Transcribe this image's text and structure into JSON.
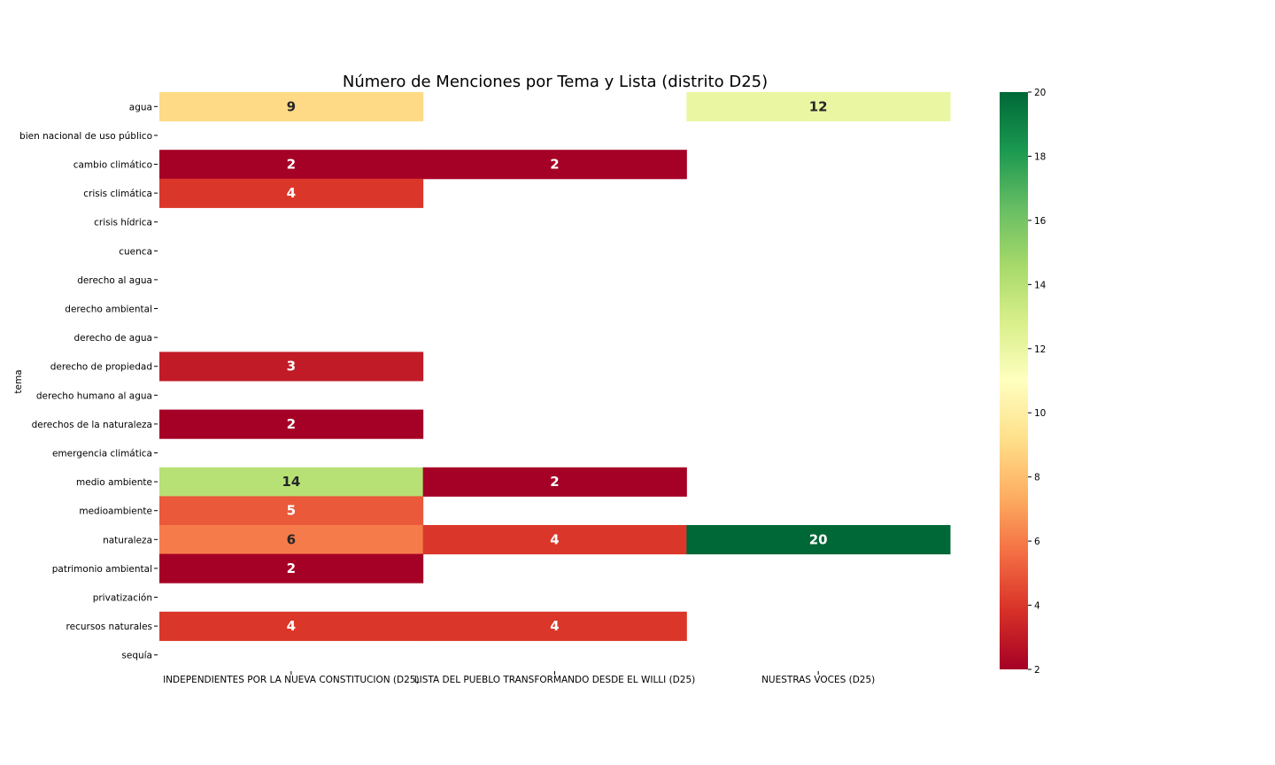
{
  "chart_data": {
    "type": "heatmap",
    "title": "Número de Menciones por Tema y Lista (distrito D25)",
    "ylabel": "tema",
    "xlabel": "",
    "columns": [
      "INDEPENDIENTES POR LA NUEVA CONSTITUCION (D25)",
      "LISTA DEL PUEBLO TRANSFORMANDO DESDE EL WILLI (D25)",
      "NUESTRAS VOCES (D25)"
    ],
    "rows": [
      "agua",
      "bien nacional de uso público",
      "cambio climático",
      "crisis climática",
      "crisis hídrica",
      "cuenca",
      "derecho al agua",
      "derecho ambiental",
      "derecho de agua",
      "derecho de propiedad",
      "derecho humano al agua",
      "derechos de la naturaleza",
      "emergencia climática",
      "medio ambiente",
      "medioambiente",
      "naturaleza",
      "patrimonio ambiental",
      "privatización",
      "recursos naturales",
      "sequía"
    ],
    "values": [
      [
        9,
        null,
        12
      ],
      [
        null,
        null,
        null
      ],
      [
        2,
        2,
        null
      ],
      [
        4,
        null,
        null
      ],
      [
        null,
        null,
        null
      ],
      [
        null,
        null,
        null
      ],
      [
        null,
        null,
        null
      ],
      [
        null,
        null,
        null
      ],
      [
        null,
        null,
        null
      ],
      [
        3,
        null,
        null
      ],
      [
        null,
        null,
        null
      ],
      [
        2,
        null,
        null
      ],
      [
        null,
        null,
        null
      ],
      [
        14,
        2,
        null
      ],
      [
        5,
        null,
        null
      ],
      [
        6,
        4,
        20
      ],
      [
        2,
        null,
        null
      ],
      [
        null,
        null,
        null
      ],
      [
        4,
        4,
        null
      ],
      [
        null,
        null,
        null
      ]
    ],
    "colormap": "RdYlGn",
    "vmin": 2,
    "vmax": 20,
    "colorbar_ticks": [
      2,
      4,
      6,
      8,
      10,
      12,
      14,
      16,
      18,
      20
    ],
    "annotations": true,
    "grid": false
  }
}
